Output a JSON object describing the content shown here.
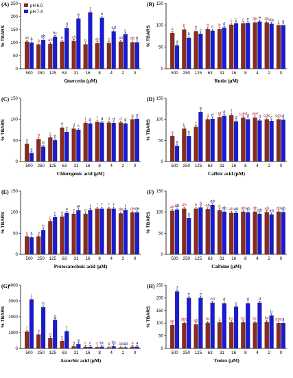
{
  "x_categories": [
    "500",
    "250",
    "125",
    "63",
    "31",
    "16",
    "8",
    "4",
    "2",
    "0"
  ],
  "colors": {
    "ph6": "#8b2a1e",
    "ph74": "#1a1ad6",
    "letters6": "#c0392b",
    "letters74": "#1a237e"
  },
  "legend": [
    "pH 6.0",
    "pH 7.4"
  ],
  "chart_data": [
    {
      "type": "bar",
      "panel": "(A)",
      "xlabel": "Quercetin (µM)",
      "ylabel": "% TBARS",
      "ylim": [
        0,
        250
      ],
      "yticks": [
        0,
        50,
        100,
        150,
        200,
        250
      ],
      "legend": "top-left",
      "series": [
        {
          "name": "pH 6.0",
          "values": [
            103,
            93,
            95,
            103,
            106,
            93,
            98,
            98,
            103,
            101
          ],
          "letters": [
            "ab",
            "a",
            "ab",
            "b",
            "ab",
            "b",
            "ab",
            "b",
            "ab",
            "ab"
          ]
        },
        {
          "name": "pH 7.4",
          "values": [
            100,
            110,
            122,
            155,
            192,
            215,
            195,
            143,
            132,
            101
          ],
          "letters": [
            "a",
            "ab",
            "bc",
            "d",
            "e",
            "f",
            "e",
            "cd",
            "c",
            "b"
          ]
        }
      ]
    },
    {
      "type": "bar",
      "panel": "(B)",
      "xlabel": "Rutin (µM)",
      "ylabel": "% TBARS",
      "ylim": [
        0,
        150
      ],
      "yticks": [
        0,
        50,
        100,
        150
      ],
      "series": [
        {
          "name": "pH 6.0",
          "values": [
            82,
            90,
            86,
            91,
            91,
            101,
            104,
            106,
            106,
            100
          ],
          "letters": [
            "a",
            "b",
            "b",
            "b",
            "b",
            "c",
            "c",
            "de",
            "de",
            "c"
          ]
        },
        {
          "name": "pH 7.4",
          "values": [
            53,
            71,
            80,
            87,
            94,
            104,
            105,
            108,
            103,
            100
          ],
          "letters": [
            "a",
            "b",
            "c",
            "c",
            "d",
            "c",
            "e",
            "e",
            "de",
            "e"
          ]
        }
      ]
    },
    {
      "type": "bar",
      "panel": "(C)",
      "xlabel": "Chlorogenic acid (µM)",
      "ylabel": "% TBARS",
      "ylim": [
        0,
        150
      ],
      "yticks": [
        0,
        50,
        100,
        150
      ],
      "series": [
        {
          "name": "pH 6.0",
          "values": [
            42,
            53,
            57,
            80,
            78,
            91,
            94,
            92,
            92,
            100
          ],
          "letters": [
            "a",
            "b",
            "c",
            "d",
            "d",
            "f",
            "f",
            "d",
            "d",
            "g"
          ]
        },
        {
          "name": "pH 7.4",
          "values": [
            20,
            35,
            50,
            70,
            75,
            90,
            92,
            91,
            90,
            101
          ],
          "letters": [
            "a",
            "b",
            "b",
            "c",
            "c",
            "d",
            "d",
            "d",
            "d",
            "e"
          ]
        }
      ]
    },
    {
      "type": "bar",
      "panel": "(D)",
      "xlabel": "Caffeic acid (µM)",
      "ylabel": "% TBARS",
      "ylim": [
        0,
        150
      ],
      "yticks": [
        0,
        50,
        100,
        150
      ],
      "series": [
        {
          "name": "pH 6.0",
          "values": [
            60,
            78,
            82,
            100,
            105,
            110,
            104,
            104,
            100,
            100
          ],
          "letters": [
            "a",
            "b",
            "c",
            "d",
            "ef",
            "f",
            "cdef",
            "def",
            "cde",
            "cdc"
          ]
        },
        {
          "name": "pH 7.4",
          "values": [
            37,
            60,
            117,
            101,
            108,
            95,
            100,
            97,
            96,
            99
          ],
          "letters": [
            "a",
            "b",
            "e",
            "d",
            "d",
            "d",
            "d",
            "d",
            "c",
            "d"
          ]
        }
      ]
    },
    {
      "type": "bar",
      "panel": "(E)",
      "xlabel": "Protocatechuic acid (µM)",
      "ylabel": "% TBARS",
      "ylim": [
        0,
        150
      ],
      "yticks": [
        0,
        50,
        100,
        150
      ],
      "series": [
        {
          "name": "pH 6.0",
          "values": [
            42,
            42,
            78,
            89,
            96,
            96,
            108,
            108,
            97,
            99
          ],
          "letters": [
            "a",
            "a",
            "c",
            "d",
            "e",
            "e",
            "f",
            "f",
            "de",
            "de"
          ]
        },
        {
          "name": "pH 7.4",
          "values": [
            40,
            57,
            88,
            98,
            104,
            105,
            108,
            108,
            105,
            99
          ],
          "letters": [
            "a",
            "b",
            "c",
            "e",
            "ef",
            "f",
            "f",
            "f",
            "f",
            "de"
          ]
        }
      ]
    },
    {
      "type": "bar",
      "panel": "(F)",
      "xlabel": "Caffeine (µM)",
      "ylabel": "% TBARS",
      "ylim": [
        0,
        150
      ],
      "yticks": [
        0,
        50,
        100,
        150
      ],
      "series": [
        {
          "name": "pH 6.0",
          "values": [
            103,
            108,
            108,
            107,
            104,
            98,
            101,
            101,
            100,
            101
          ],
          "letters": [
            "ab",
            "ab",
            "b",
            "ab",
            "b",
            "ab",
            "ab",
            "ab",
            "ab",
            "ab"
          ]
        },
        {
          "name": "pH 7.4",
          "values": [
            106,
            86,
            111,
            117,
            101,
            98,
            99,
            96,
            94,
            100
          ],
          "letters": [
            "ab",
            "a",
            "b",
            "ab",
            "ab",
            "ab",
            "ab",
            "ab",
            "ab",
            "ab"
          ]
        }
      ]
    },
    {
      "type": "bar",
      "panel": "(G)",
      "xlabel": "Ascorbic acid (µM)",
      "ylabel": "% TBARS",
      "ylim": [
        0,
        4000
      ],
      "yticks": [
        0,
        1000,
        2000,
        3000,
        4000
      ],
      "series": [
        {
          "name": "pH 6.0",
          "values": [
            1060,
            880,
            650,
            470,
            130,
            90,
            70,
            60,
            60,
            100
          ],
          "letters": [
            "f",
            "e",
            "d",
            "c",
            "a",
            "c",
            "c",
            "b",
            "ab",
            "a"
          ]
        },
        {
          "name": "pH 7.4",
          "values": [
            3100,
            2600,
            1800,
            1070,
            270,
            90,
            100,
            130,
            60,
            100
          ],
          "letters": [
            "i",
            "h",
            "g",
            "f",
            "a",
            "c",
            "bc",
            "bc",
            "ab",
            "a"
          ]
        }
      ]
    },
    {
      "type": "bar",
      "panel": "(H)",
      "xlabel": "Trolox (µM)",
      "ylabel": "% TBARS",
      "ylim": [
        0,
        250
      ],
      "yticks": [
        0,
        50,
        100,
        150,
        200,
        250
      ],
      "series": [
        {
          "name": "pH 6.0",
          "values": [
            92,
            100,
            95,
            101,
            103,
            103,
            103,
            102,
            105,
            100
          ],
          "letters": [
            "ab",
            "abc",
            "ab",
            "bc",
            "c",
            "bc",
            "bc",
            "bc",
            "bc",
            "abc"
          ]
        },
        {
          "name": "pH 7.4",
          "values": [
            225,
            200,
            200,
            180,
            178,
            165,
            178,
            180,
            130,
            100
          ],
          "letters": [
            "f",
            "e",
            "e",
            "cd",
            "d",
            "c",
            "d",
            "d",
            "b",
            "a"
          ]
        }
      ]
    }
  ]
}
